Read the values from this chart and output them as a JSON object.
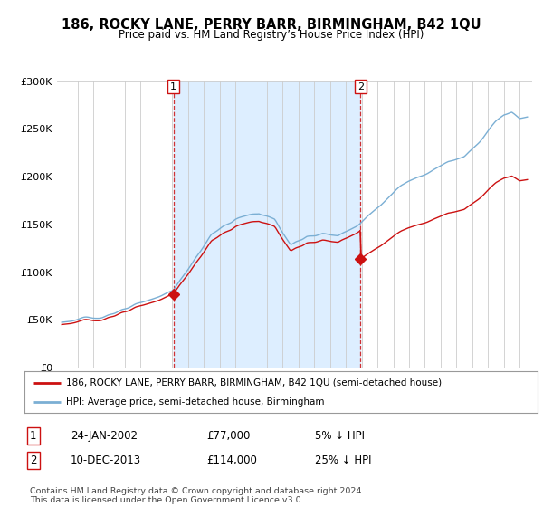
{
  "title": "186, ROCKY LANE, PERRY BARR, BIRMINGHAM, B42 1QU",
  "subtitle": "Price paid vs. HM Land Registry’s House Price Index (HPI)",
  "legend_line1": "186, ROCKY LANE, PERRY BARR, BIRMINGHAM, B42 1QU (semi-detached house)",
  "legend_line2": "HPI: Average price, semi-detached house, Birmingham",
  "footer": "Contains HM Land Registry data © Crown copyright and database right 2024.\nThis data is licensed under the Open Government Licence v3.0.",
  "sale1_date": "24-JAN-2002",
  "sale1_price": "£77,000",
  "sale1_hpi": "5% ↓ HPI",
  "sale1_year": 2002.07,
  "sale1_value": 77000,
  "sale2_date": "10-DEC-2013",
  "sale2_price": "£114,000",
  "sale2_hpi": "25% ↓ HPI",
  "sale2_year": 2013.92,
  "sale2_value": 114000,
  "hpi_color": "#7bafd4",
  "price_color": "#cc1111",
  "marker_color": "#cc1111",
  "dashed_line_color": "#cc1111",
  "fill_color": "#ddeeff",
  "ylim": [
    0,
    300000
  ],
  "yticks": [
    0,
    50000,
    100000,
    150000,
    200000,
    250000,
    300000
  ],
  "background_color": "#ffffff",
  "grid_color": "#cccccc"
}
